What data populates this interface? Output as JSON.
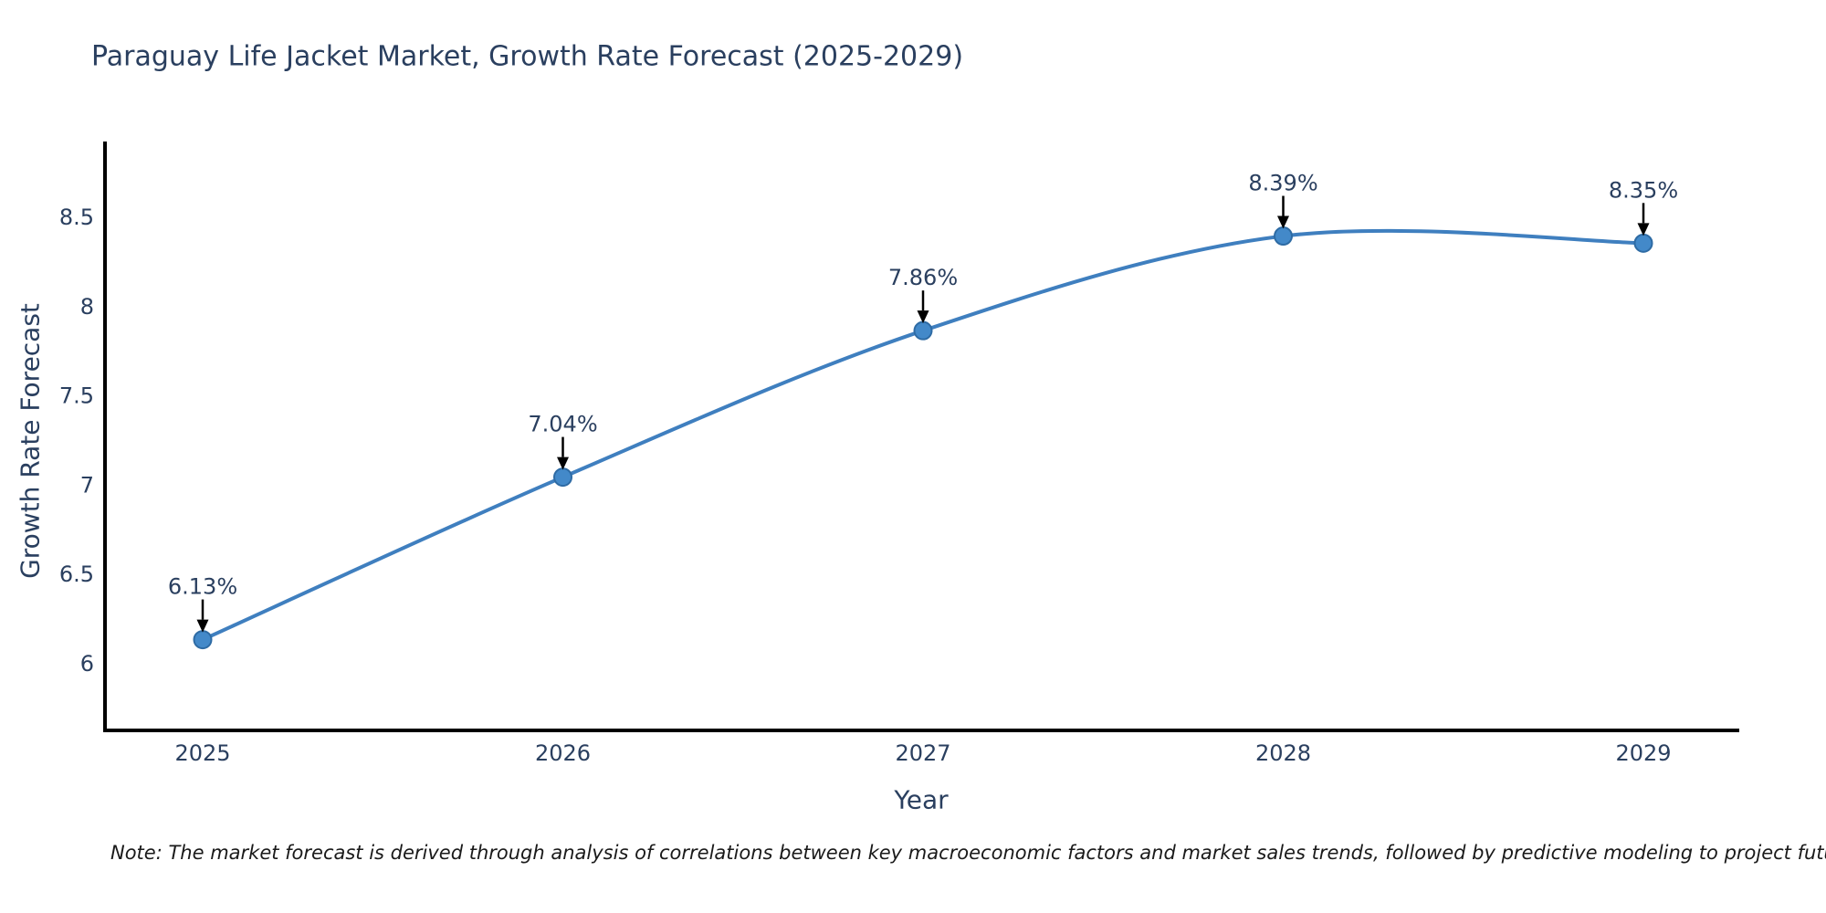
{
  "title": "Paraguay Life Jacket Market, Growth Rate Forecast (2025-2029)",
  "note": "Note: The market forecast is derived through analysis of correlations between key macroeconomic factors and market sales trends, followed by predictive modeling to project future sales",
  "chart_data": {
    "type": "line",
    "title": "Paraguay Life Jacket Market, Growth Rate Forecast (2025-2029)",
    "xlabel": "Year",
    "ylabel": "Growth Rate Forecast",
    "x": [
      2025,
      2026,
      2027,
      2028,
      2029
    ],
    "y": [
      6.13,
      7.04,
      7.86,
      8.39,
      8.35
    ],
    "point_labels": [
      "6.13%",
      "7.04%",
      "7.86%",
      "8.39%",
      "8.35%"
    ],
    "yticks": [
      6,
      6.5,
      7,
      7.5,
      8,
      8.5
    ],
    "xticks": [
      2025,
      2026,
      2027,
      2028,
      2029
    ],
    "ylim": [
      5.62,
      8.92
    ],
    "xlim": [
      2024.73,
      2029.27
    ],
    "line_shape": "spline",
    "grid": false,
    "legend": "none",
    "colors": {
      "line": "#3f7fbf",
      "marker_fill": "#4389c9",
      "marker_edge": "#2e6ba4",
      "axis": "#000000",
      "text": "#2a3f5f",
      "annotation_arrow": "#000000"
    }
  }
}
